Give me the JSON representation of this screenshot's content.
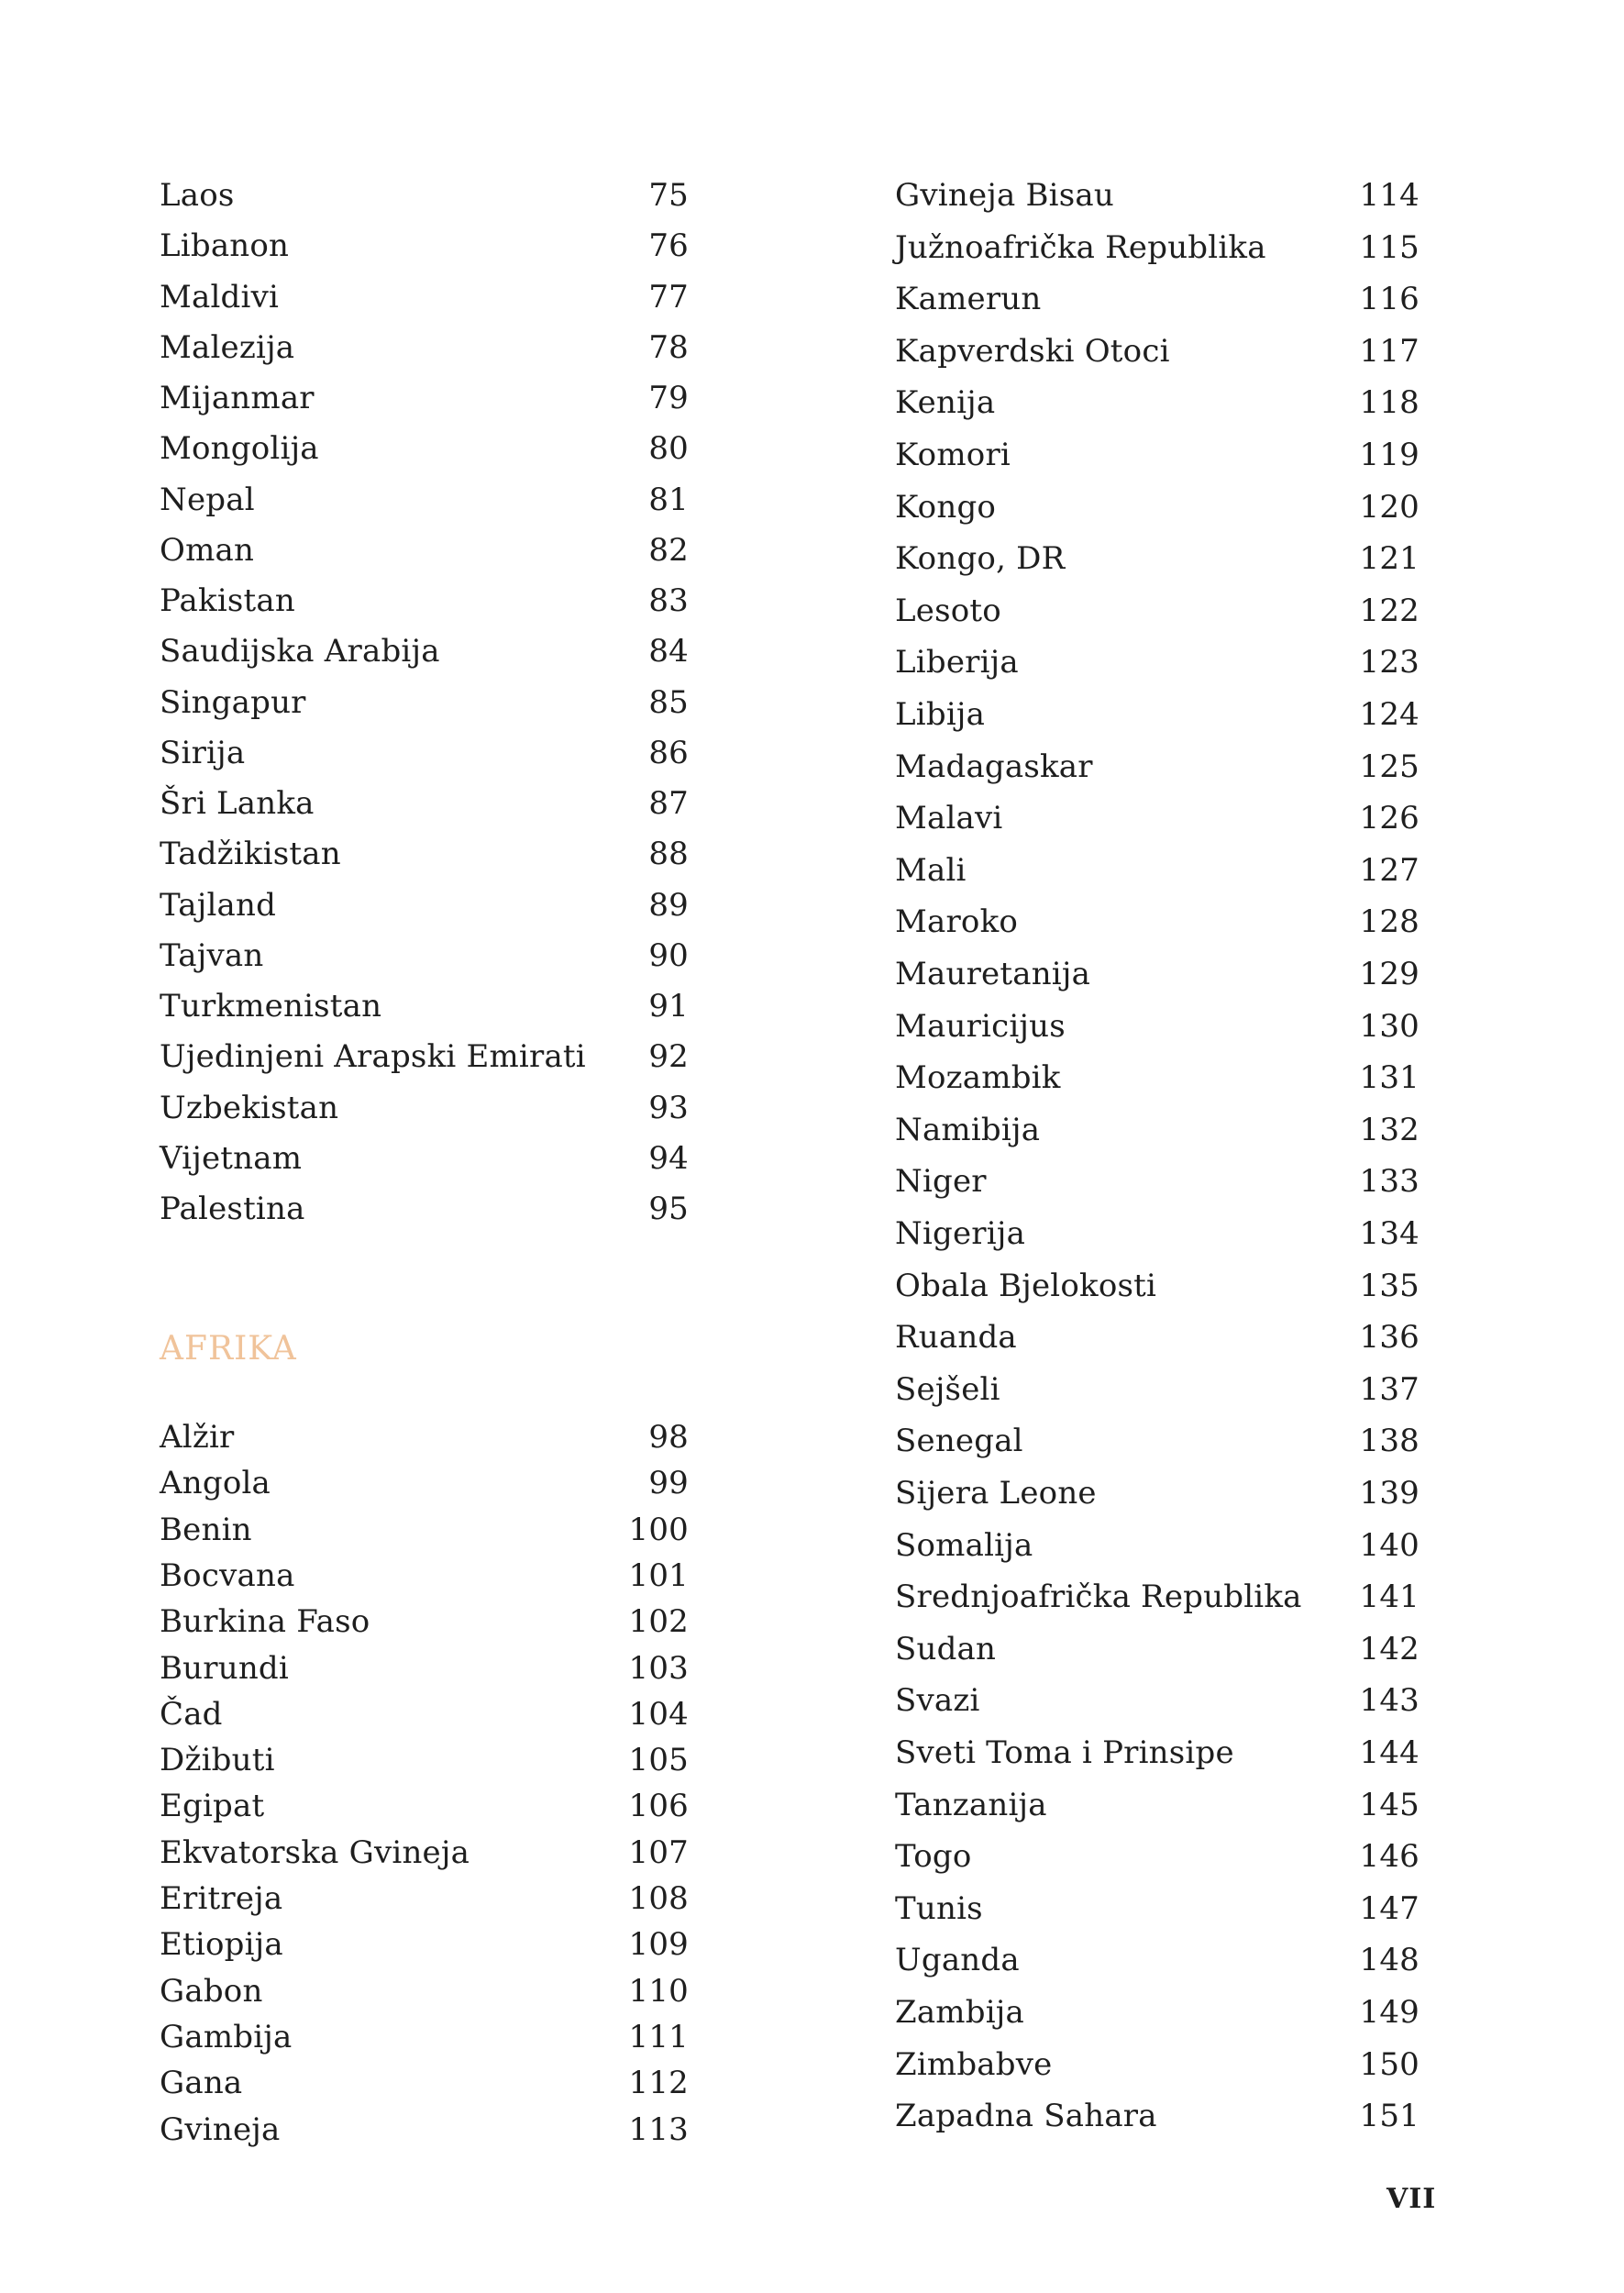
{
  "colors": {
    "text": "#1e1e1e",
    "section_heading": "#f0c39a"
  },
  "left_column": {
    "asia_tail": [
      {
        "name": "Laos",
        "page": "75"
      },
      {
        "name": "Libanon",
        "page": "76"
      },
      {
        "name": "Maldivi",
        "page": "77"
      },
      {
        "name": "Malezija",
        "page": "78"
      },
      {
        "name": "Mijanmar",
        "page": "79"
      },
      {
        "name": "Mongolija",
        "page": "80"
      },
      {
        "name": "Nepal",
        "page": "81"
      },
      {
        "name": "Oman",
        "page": "82"
      },
      {
        "name": "Pakistan",
        "page": "83"
      },
      {
        "name": "Saudijska Arabija",
        "page": "84"
      },
      {
        "name": "Singapur",
        "page": "85"
      },
      {
        "name": "Sirija",
        "page": "86"
      },
      {
        "name": "Šri Lanka",
        "page": "87"
      },
      {
        "name": "Tadžikistan",
        "page": "88"
      },
      {
        "name": "Tajland",
        "page": "89"
      },
      {
        "name": "Tajvan",
        "page": "90"
      },
      {
        "name": "Turkmenistan",
        "page": "91"
      },
      {
        "name": "Ujedinjeni Arapski Emirati",
        "page": "92"
      },
      {
        "name": "Uzbekistan",
        "page": "93"
      },
      {
        "name": "Vijetnam",
        "page": "94"
      },
      {
        "name": "Palestina",
        "page": "95"
      }
    ],
    "section_title": "AFRIKA",
    "africa_start": [
      {
        "name": "Alžir",
        "page": "98"
      },
      {
        "name": "Angola",
        "page": "99"
      },
      {
        "name": "Benin",
        "page": "100"
      },
      {
        "name": "Bocvana",
        "page": "101"
      },
      {
        "name": "Burkina Faso",
        "page": "102"
      },
      {
        "name": "Burundi",
        "page": "103"
      },
      {
        "name": "Čad",
        "page": "104"
      },
      {
        "name": "Džibuti",
        "page": "105"
      },
      {
        "name": "Egipat",
        "page": "106"
      },
      {
        "name": "Ekvatorska Gvineja",
        "page": "107"
      },
      {
        "name": "Eritreja",
        "page": "108"
      },
      {
        "name": "Etiopija",
        "page": "109"
      },
      {
        "name": "Gabon",
        "page": "110"
      },
      {
        "name": "Gambija",
        "page": "111"
      },
      {
        "name": "Gana",
        "page": "112"
      },
      {
        "name": "Gvineja",
        "page": "113"
      }
    ]
  },
  "right_column": {
    "entries": [
      {
        "name": "Gvineja Bisau",
        "page": "114"
      },
      {
        "name": "Južnoafrička Republika",
        "page": "115"
      },
      {
        "name": "Kamerun",
        "page": "116"
      },
      {
        "name": "Kapverdski Otoci",
        "page": "117"
      },
      {
        "name": "Kenija",
        "page": "118"
      },
      {
        "name": "Komori",
        "page": "119"
      },
      {
        "name": "Kongo",
        "page": "120"
      },
      {
        "name": "Kongo, DR",
        "page": "121"
      },
      {
        "name": "Lesoto",
        "page": "122"
      },
      {
        "name": "Liberija",
        "page": "123"
      },
      {
        "name": "Libija",
        "page": "124"
      },
      {
        "name": "Madagaskar",
        "page": "125"
      },
      {
        "name": "Malavi",
        "page": "126"
      },
      {
        "name": "Mali",
        "page": "127"
      },
      {
        "name": "Maroko",
        "page": "128"
      },
      {
        "name": "Mauretanija",
        "page": "129"
      },
      {
        "name": "Mauricijus",
        "page": "130"
      },
      {
        "name": "Mozambik",
        "page": "131"
      },
      {
        "name": "Namibija",
        "page": "132"
      },
      {
        "name": "Niger",
        "page": "133"
      },
      {
        "name": "Nigerija",
        "page": "134"
      },
      {
        "name": "Obala Bjelokosti",
        "page": "135"
      },
      {
        "name": "Ruanda",
        "page": "136"
      },
      {
        "name": "Sejšeli",
        "page": "137"
      },
      {
        "name": "Senegal",
        "page": "138"
      },
      {
        "name": "Sijera Leone",
        "page": "139"
      },
      {
        "name": "Somalija",
        "page": "140"
      },
      {
        "name": "Srednjoafrička Republika",
        "page": "141"
      },
      {
        "name": "Sudan",
        "page": "142"
      },
      {
        "name": "Svazi",
        "page": "143"
      },
      {
        "name": "Sveti Toma i Prinsipe",
        "page": "144"
      },
      {
        "name": "Tanzanija",
        "page": "145"
      },
      {
        "name": "Togo",
        "page": "146"
      },
      {
        "name": "Tunis",
        "page": "147"
      },
      {
        "name": "Uganda",
        "page": "148"
      },
      {
        "name": "Zambija",
        "page": "149"
      },
      {
        "name": "Zimbabve",
        "page": "150"
      },
      {
        "name": "Zapadna Sahara",
        "page": "151"
      }
    ]
  },
  "page_number": "VII"
}
